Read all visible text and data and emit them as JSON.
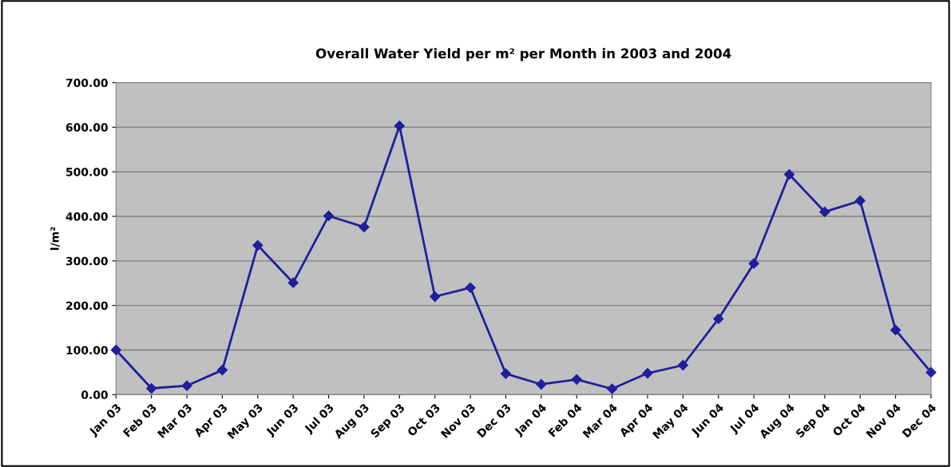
{
  "chart_data": {
    "type": "line",
    "title": "Overall Water Yield per m² per Month in 2003 and 2004",
    "ylabel": "l/m²",
    "categories": [
      "Jan 03",
      "Feb 03",
      "Mar 03",
      "Apr 03",
      "May 03",
      "Jun 03",
      "Jul 03",
      "Aug 03",
      "Sep 03",
      "Oct 03",
      "Nov 03",
      "Dec 03",
      "Jan 04",
      "Feb 04",
      "Mar 04",
      "Apr 04",
      "May 04",
      "Jun 04",
      "Jul 04",
      "Aug 04",
      "Sep 04",
      "Oct 04",
      "Nov 04",
      "Dec 04"
    ],
    "series": [
      {
        "color": "#1f1f9e",
        "values": [
          100,
          14,
          20,
          55,
          335,
          251,
          401,
          376,
          603,
          220,
          240,
          47,
          23,
          34,
          13,
          48,
          66,
          170,
          294,
          494,
          410,
          435,
          145,
          50
        ]
      }
    ],
    "ylim": [
      0,
      700
    ],
    "yticks": [
      {
        "value": 0,
        "label": "0.00"
      },
      {
        "value": 100,
        "label": "100.00"
      },
      {
        "value": 200,
        "label": "200.00"
      },
      {
        "value": 300,
        "label": "300.00"
      },
      {
        "value": 400,
        "label": "400.00"
      },
      {
        "value": 500,
        "label": "500.00"
      },
      {
        "value": 600,
        "label": "600.00"
      },
      {
        "value": 700,
        "label": "700.00"
      }
    ],
    "grid": "y",
    "marker": "diamond",
    "line_style": "solid"
  }
}
